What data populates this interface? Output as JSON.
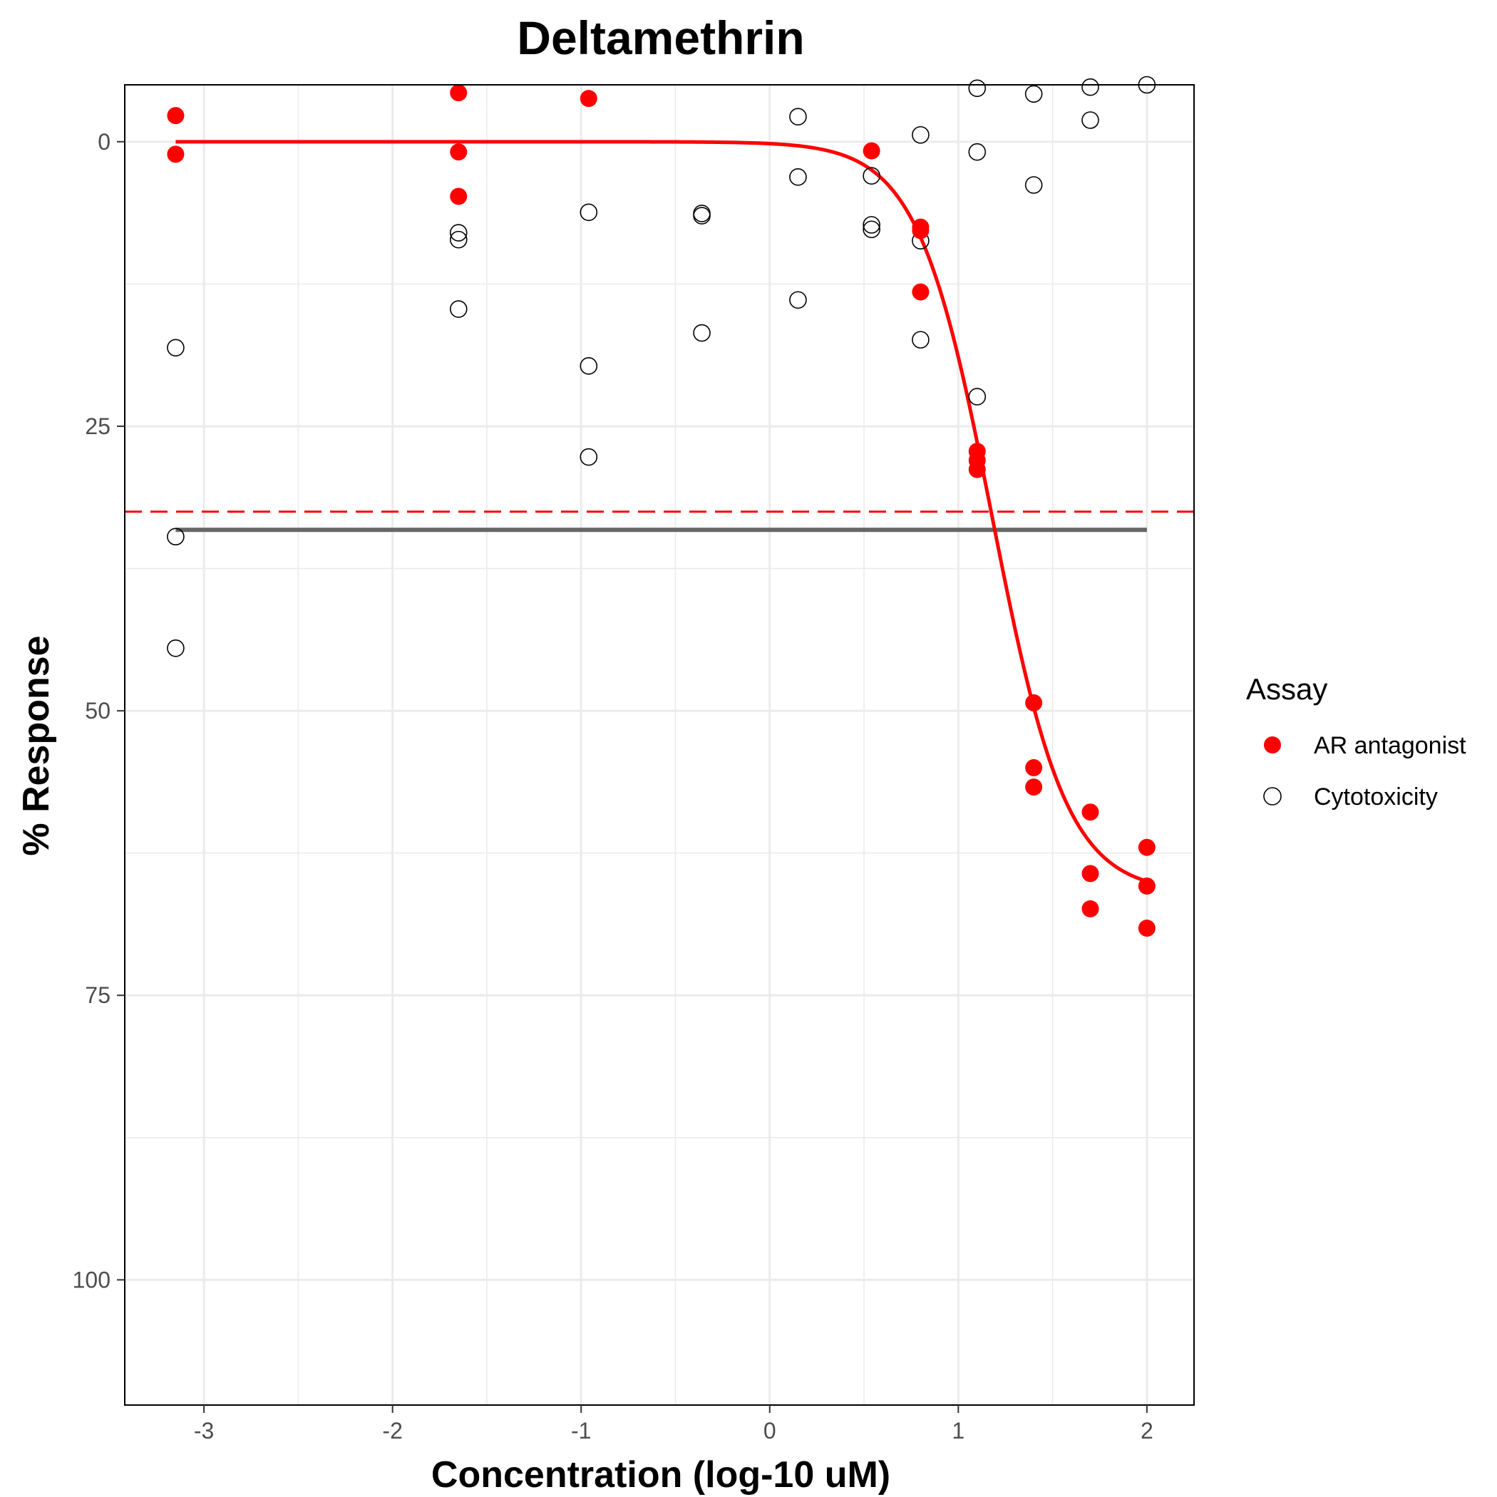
{
  "chart_data": {
    "type": "scatter",
    "title": "Deltamethrin",
    "xlabel": "Concentration (log-10 uM)",
    "ylabel": "% Response",
    "xlim": [
      -3.42,
      2.25
    ],
    "ylim": [
      111.0,
      -5.0
    ],
    "y_reversed": true,
    "x_ticks": [
      -3,
      -2,
      -1,
      0,
      1,
      2
    ],
    "x_tick_labels": [
      "-3",
      "-2",
      "-1",
      "0",
      "1",
      "2"
    ],
    "y_ticks": [
      0,
      25,
      50,
      75,
      100
    ],
    "y_tick_labels": [
      "0",
      "25",
      "50",
      "75",
      "100"
    ],
    "grid": true,
    "legend": {
      "title": "Assay",
      "position": "right",
      "entries": [
        "AR antagonist",
        "Cytotoxicity"
      ]
    },
    "colors": {
      "ar": "#ff0000",
      "cyto": "#000000",
      "cytotoxicity_line": "#666666",
      "grid": "#ebebeb"
    },
    "series": [
      {
        "name": "AR antagonist",
        "marker": "filled-circle",
        "x": [
          -3.15,
          -3.15,
          -1.65,
          -1.65,
          -1.65,
          -0.96,
          0.54,
          0.8,
          0.8,
          0.8,
          1.1,
          1.1,
          1.1,
          1.4,
          1.4,
          1.4,
          1.7,
          1.7,
          1.7,
          2.0,
          2.0,
          2.0
        ],
        "y": [
          -2.3,
          1.1,
          -4.3,
          0.9,
          4.8,
          -3.8,
          0.8,
          7.5,
          7.8,
          13.2,
          27.2,
          28.0,
          28.8,
          49.3,
          55.0,
          56.7,
          58.9,
          64.3,
          67.4,
          62.0,
          65.4,
          69.1
        ]
      },
      {
        "name": "Cytotoxicity",
        "marker": "open-circle",
        "x": [
          -3.15,
          -3.15,
          -3.15,
          -1.65,
          -1.65,
          -1.65,
          -0.96,
          -0.96,
          -0.96,
          -0.36,
          -0.36,
          -0.36,
          0.15,
          0.15,
          0.15,
          0.54,
          0.54,
          0.54,
          0.8,
          0.8,
          0.8,
          1.1,
          1.1,
          1.1,
          1.4,
          1.4,
          1.7,
          1.7,
          2.0
        ],
        "y": [
          18.1,
          34.7,
          44.5,
          8.0,
          8.6,
          14.7,
          6.2,
          19.7,
          27.7,
          6.3,
          6.5,
          16.8,
          -2.2,
          3.1,
          13.9,
          3.0,
          7.3,
          7.7,
          -0.6,
          8.7,
          17.4,
          -4.7,
          0.9,
          22.4,
          -4.2,
          3.8,
          -4.8,
          -1.9,
          -5.0
        ]
      }
    ],
    "fit_curve": {
      "series": "AR antagonist",
      "model": "hill",
      "bottom": 0,
      "top": 66,
      "log_ac50": 1.18,
      "hill_slope": 2.2,
      "x_range": [
        -3.15,
        2.0
      ]
    },
    "reference_lines": [
      {
        "type": "horizontal",
        "y": 32.5,
        "style": "dashed",
        "color": "#ff0000"
      },
      {
        "type": "horizontal",
        "y": 34.1,
        "style": "solid",
        "color": "#666666",
        "x_range": [
          -3.15,
          2.0
        ]
      }
    ]
  }
}
